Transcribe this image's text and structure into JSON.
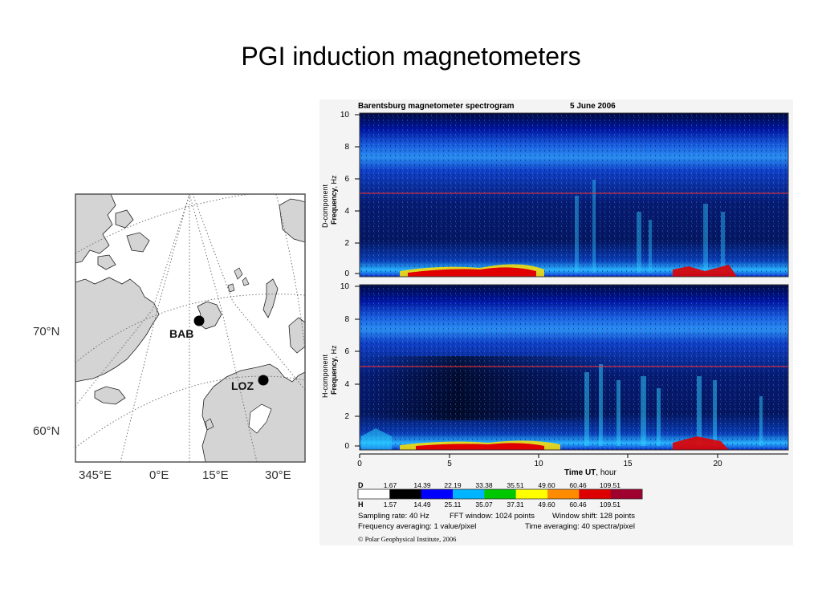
{
  "slide": {
    "title": "PGI induction magnetometers"
  },
  "map": {
    "stations": [
      {
        "code": "BAB"
      },
      {
        "code": "LOZ"
      }
    ],
    "lat_labels": [
      "70°N",
      "60°N"
    ],
    "lon_labels": [
      "345°E",
      "0°E",
      "15°E",
      "30°E"
    ],
    "colors": {
      "land": "#d4d4d4",
      "sea": "#ffffff",
      "grid": "#666666"
    }
  },
  "spectrogram": {
    "header": {
      "title": "Barentsburg magnetometer spectrogram",
      "date": "5 June 2006"
    },
    "panels": [
      {
        "component": "D-component",
        "ylabel_bold": "Frequency",
        "ylabel_unit": ", Hz"
      },
      {
        "component": "H-component",
        "ylabel_bold": "Frequency",
        "ylabel_unit": ", Hz"
      }
    ],
    "y_ticks": [
      "10",
      "8",
      "6",
      "4",
      "2",
      "0"
    ],
    "x_ticks": [
      "0",
      "5",
      "10",
      "15",
      "20"
    ],
    "xlabel_bold": "Time UT",
    "xlabel_unit": ", hour",
    "colorbar": {
      "d_label": "D",
      "h_label": "H",
      "d_values": [
        "1.67",
        "14.39",
        "22.19",
        "33.38",
        "35.51",
        "49.60",
        "60.46",
        "109.51"
      ],
      "h_values": [
        "1.57",
        "14.49",
        "25.11",
        "35.07",
        "37.31",
        "49.60",
        "60.46",
        "109.51"
      ],
      "colors": [
        "#ffffff",
        "#000000",
        "#0000ff",
        "#00b4ff",
        "#00c800",
        "#ffff00",
        "#ff8c00",
        "#dc0000",
        "#a0002d"
      ]
    },
    "info": {
      "sampling": "Sampling rate: 40 Hz",
      "fft": "FFT window: 1024 points",
      "shift": "Window shift: 128 points",
      "freq_avg": "Frequency averaging: 1 value/pixel",
      "time_avg": "Time averaging: 40 spectra/pixel"
    },
    "copyright": "© Polar Geophysical Institute, 2006"
  }
}
